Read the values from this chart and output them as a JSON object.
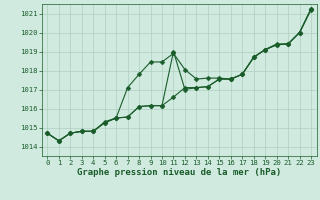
{
  "title": "Graphe pression niveau de la mer (hPa)",
  "background_color": "#d0eae0",
  "grid_color": "#b0cfc0",
  "line_color": "#1a5c2a",
  "markersize": 2.5,
  "linewidth": 0.8,
  "xlim": [
    -0.5,
    23.5
  ],
  "ylim": [
    1013.5,
    1021.5
  ],
  "xticks": [
    0,
    1,
    2,
    3,
    4,
    5,
    6,
    7,
    8,
    9,
    10,
    11,
    12,
    13,
    14,
    15,
    16,
    17,
    18,
    19,
    20,
    21,
    22,
    23
  ],
  "yticks": [
    1014,
    1015,
    1016,
    1017,
    1018,
    1019,
    1020,
    1021
  ],
  "series1_x": [
    0,
    1,
    2,
    3,
    4,
    5,
    6,
    7,
    8,
    9,
    10,
    11,
    12,
    13,
    14,
    15,
    16,
    17,
    18,
    19,
    20,
    21,
    22,
    23
  ],
  "series1_y": [
    1014.7,
    1014.3,
    1014.7,
    1014.8,
    1014.8,
    1015.3,
    1015.5,
    1017.1,
    1017.8,
    1018.45,
    1018.45,
    1018.9,
    1018.05,
    1017.55,
    1017.6,
    1017.6,
    1017.55,
    1017.8,
    1018.7,
    1019.1,
    1019.4,
    1019.4,
    1020.0,
    1021.2
  ],
  "series2_x": [
    0,
    1,
    2,
    3,
    4,
    5,
    6,
    7,
    8,
    9,
    10,
    11,
    12,
    13,
    14,
    15,
    16,
    17,
    18,
    19,
    20,
    21,
    22,
    23
  ],
  "series2_y": [
    1014.7,
    1014.3,
    1014.7,
    1014.8,
    1014.8,
    1015.25,
    1015.5,
    1015.55,
    1016.1,
    1016.15,
    1016.15,
    1016.6,
    1017.1,
    1017.1,
    1017.15,
    1017.55,
    1017.55,
    1017.8,
    1018.7,
    1019.1,
    1019.35,
    1019.4,
    1020.0,
    1021.25
  ],
  "series3_x": [
    0,
    1,
    2,
    3,
    4,
    5,
    6,
    7,
    8,
    9,
    10,
    11,
    12,
    13,
    14,
    15,
    16,
    17,
    18,
    19,
    20,
    21,
    22,
    23
  ],
  "series3_y": [
    1014.7,
    1014.3,
    1014.7,
    1014.8,
    1014.8,
    1015.25,
    1015.5,
    1015.55,
    1016.1,
    1016.15,
    1016.15,
    1019.0,
    1017.0,
    1017.1,
    1017.15,
    1017.55,
    1017.55,
    1017.8,
    1018.7,
    1019.1,
    1019.35,
    1019.4,
    1020.0,
    1021.25
  ],
  "title_fontsize": 6.5,
  "tick_fontsize": 5.2
}
